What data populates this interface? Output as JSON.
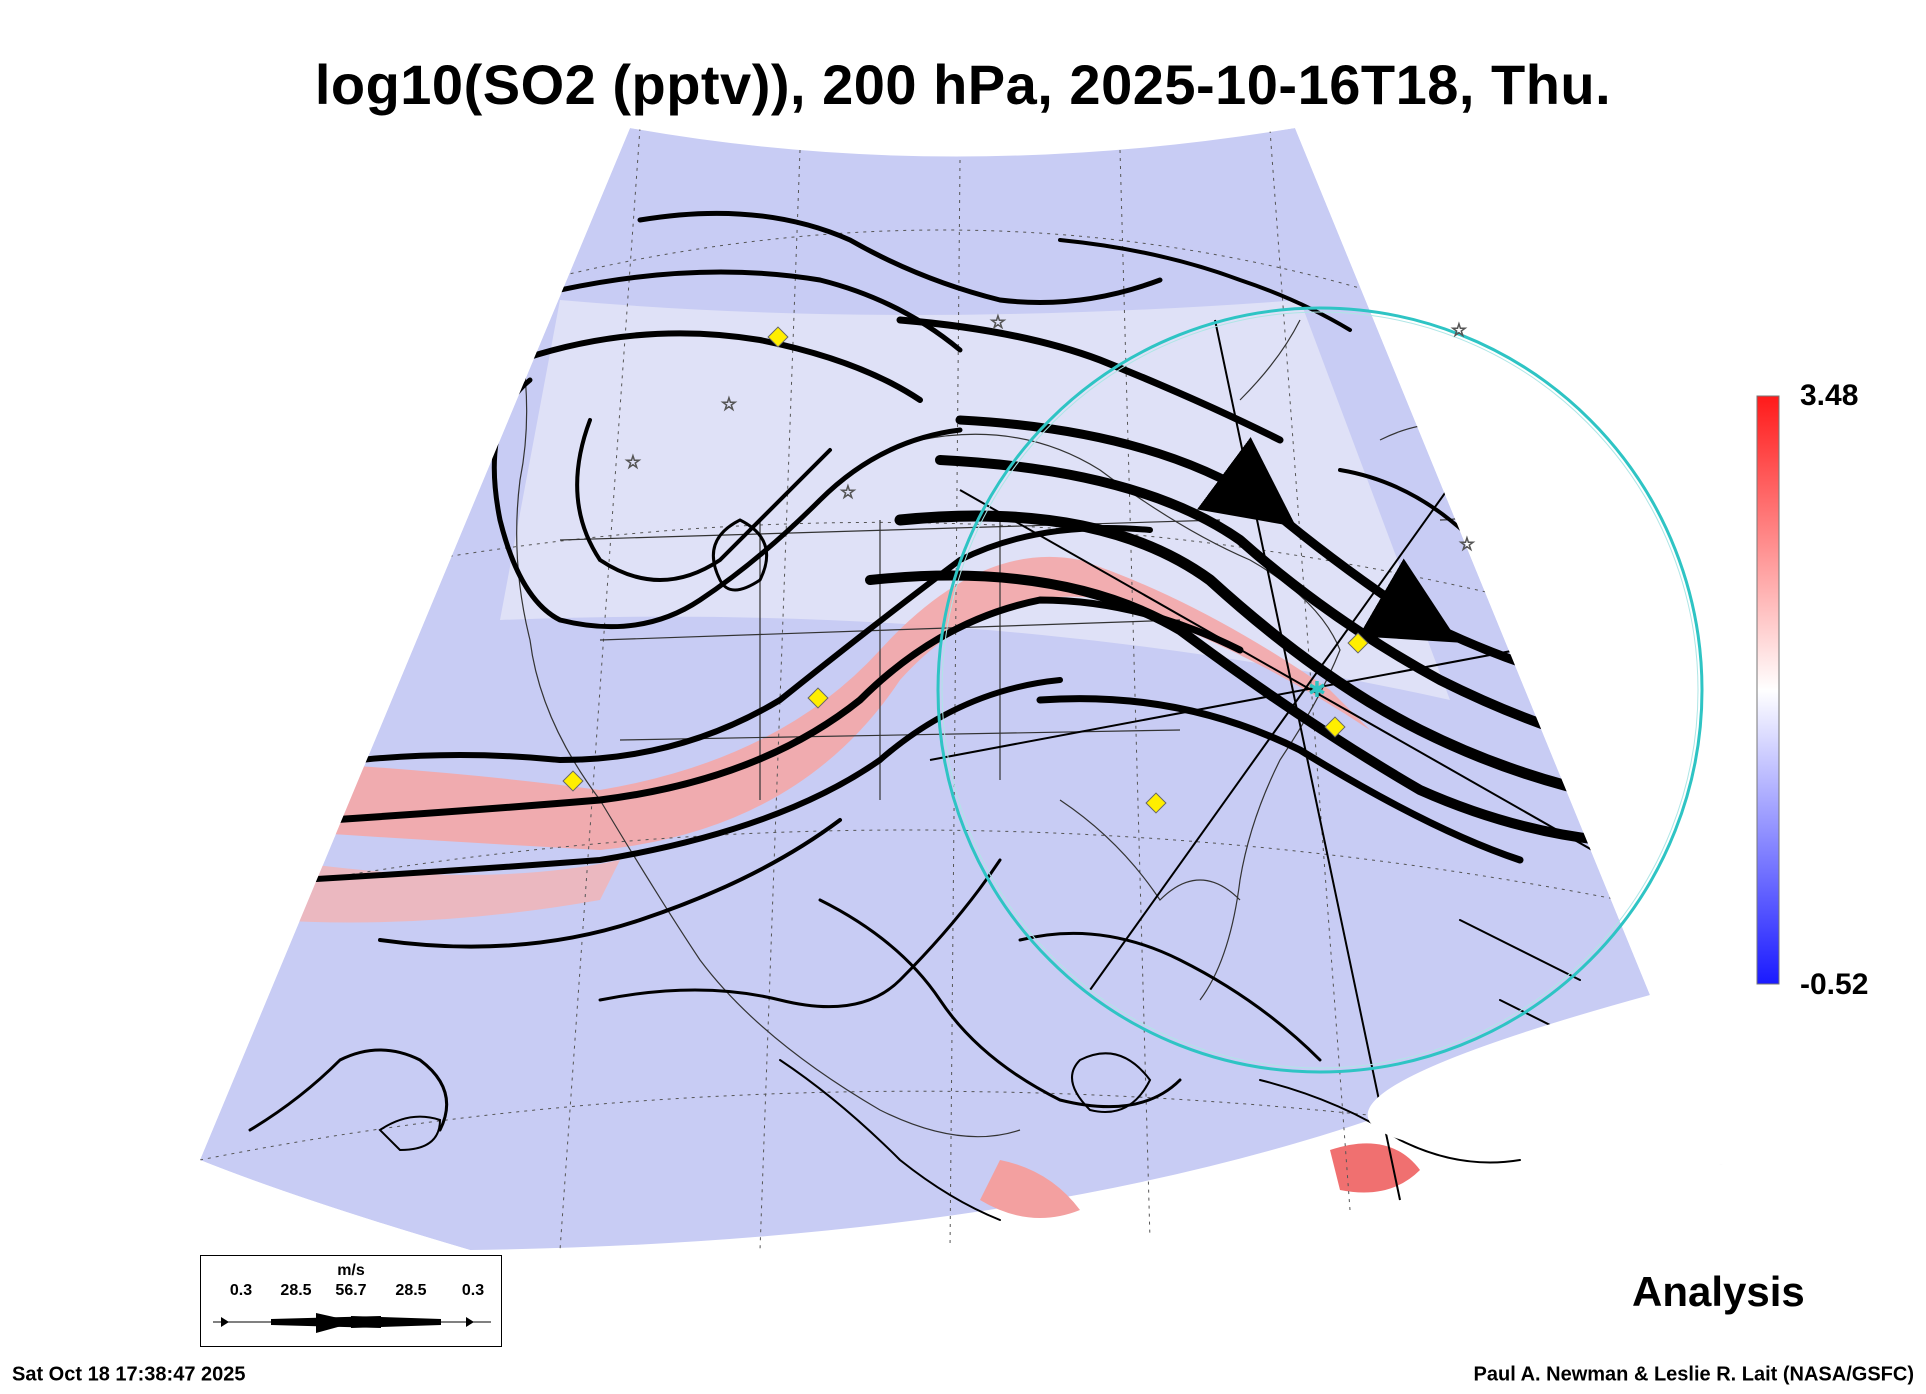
{
  "title": "log10(SO2 (pptv)), 200 hPa, 2025-10-16T18, Thu.",
  "colorbar": {
    "max_label": "3.48",
    "min_label": "-0.52",
    "colors": {
      "high": "#ff1a1a",
      "mid": "#ffffff",
      "low": "#1a1aff"
    }
  },
  "analysis_label": "Analysis",
  "legend": {
    "unit": "m/s",
    "values": [
      "0.3",
      "28.5",
      "56.7",
      "28.5",
      "0.3"
    ]
  },
  "footer": {
    "timestamp": "Sat Oct 18 17:38:47 2025",
    "credit": "Paul A. Newman & Leslie R. Lait (NASA/GSFC)"
  },
  "map": {
    "background_color": "#c8ccf4",
    "jet_color": "#f4a7a7",
    "circle_color": "#2ec4c4",
    "marker_color": "#ffee00",
    "marker_icon": "yellow-diamond-icon",
    "station_icon": "star-icon"
  }
}
